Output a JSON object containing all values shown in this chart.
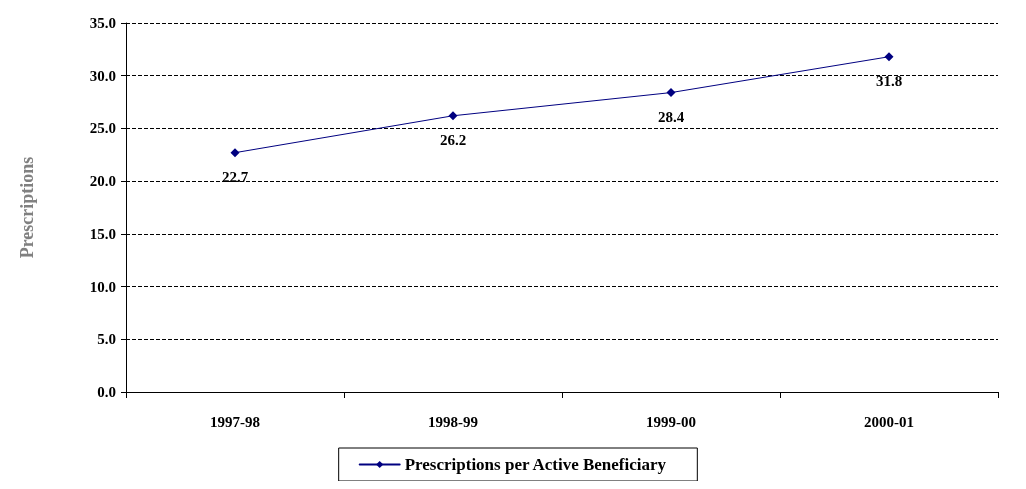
{
  "chart_data": {
    "type": "line",
    "ylabel": "Prescriptions",
    "categories": [
      "1997-98",
      "1998-99",
      "1999-00",
      "2000-01"
    ],
    "series": [
      {
        "name": "Prescriptions per Active Beneficiary",
        "color": "#000080",
        "values": [
          22.7,
          26.2,
          28.4,
          31.8
        ]
      }
    ],
    "ylim": [
      0,
      35
    ],
    "yticks": [
      {
        "value": 0,
        "label": "0.0"
      },
      {
        "value": 5,
        "label": "5.0"
      },
      {
        "value": 10,
        "label": "10.0"
      },
      {
        "value": 15,
        "label": "15.0"
      },
      {
        "value": 20,
        "label": "20.0"
      },
      {
        "value": 25,
        "label": "25.0"
      },
      {
        "value": 30,
        "label": "30.0"
      },
      {
        "value": 35,
        "label": "35.0"
      }
    ],
    "grid": "y",
    "legend": "bottom",
    "marker": "diamond",
    "line_style": "solid",
    "data_labels": true
  }
}
